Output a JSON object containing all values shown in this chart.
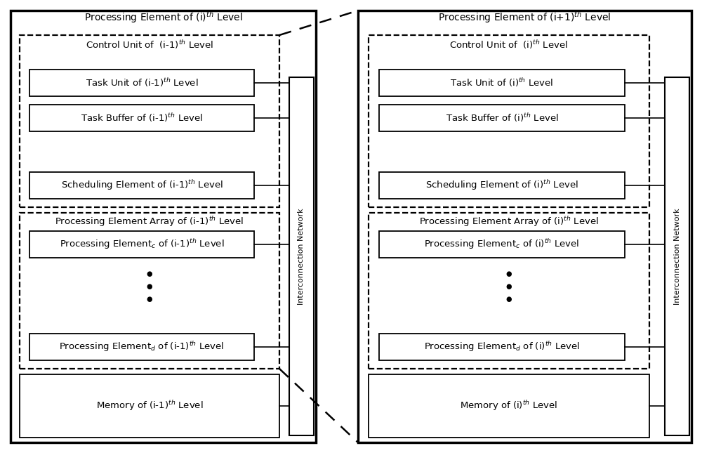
{
  "fig_width": 10.0,
  "fig_height": 6.45,
  "bg_color": "#ffffff",
  "left_panel": {
    "title": "Processing Element of (i)$^{th}$ Level",
    "control_unit_label": "Control Unit of  (i-1)$^{th}$ Level",
    "task_unit_label": "Task Unit of (i-1)$^{th}$ Level",
    "task_buffer_label": "Task Buffer of (i-1)$^{th}$ Level",
    "scheduling_label": "Scheduling Element of (i-1)$^{th}$ Level",
    "pe_array_label": "Processing Element Array of (i-1)$^{th}$ Level",
    "pe_c_label": "Processing Element$_c$ of (i-1)$^{th}$ Level",
    "pe_d_label": "Processing Element$_d$ of (i-1)$^{th}$ Level",
    "memory_label": "Memory of (i-1)$^{th}$ Level",
    "interconnect_label": "Interconnection Network"
  },
  "right_panel": {
    "title": "Processing Element of (i+1)$^{th}$ Level",
    "control_unit_label": "Control Unit of  (i)$^{th}$ Level",
    "task_unit_label": "Task Unit of (i)$^{th}$ Level",
    "task_buffer_label": "Task Buffer of (i)$^{th}$ Level",
    "scheduling_label": "Scheduling Element of (i)$^{th}$ Level",
    "pe_array_label": "Processing Element Array of (i)$^{th}$ Level",
    "pe_c_label": "Processing Element$_c$ of (i)$^{th}$ Level",
    "pe_d_label": "Processing Element$_d$ of (i)$^{th}$ Level",
    "memory_label": "Memory of (i)$^{th}$ Level",
    "interconnect_label": "Interconnection Network"
  }
}
